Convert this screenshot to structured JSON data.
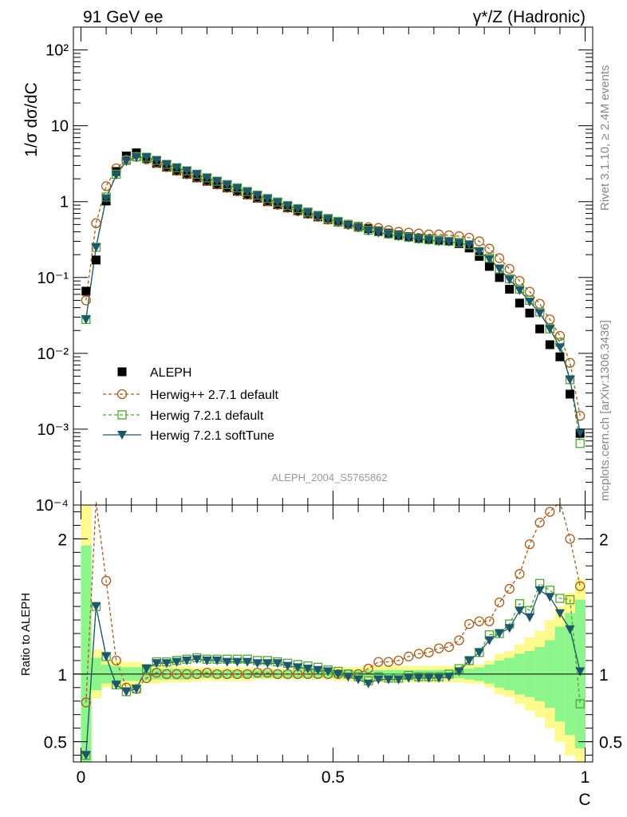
{
  "header": {
    "left_title": "91 GeV ee",
    "right_title": "γ*/Z (Hadronic)"
  },
  "side_text": {
    "rivet": "Rivet 3.1.10, ≥ 2.4M events",
    "mcplots": "mcplots.cern.ch [arXiv:1306.3436]"
  },
  "watermark": "ALEPH_2004_S5765862",
  "chart_data": [
    {
      "type": "line",
      "ylabel": "1/σ  dσ/dC",
      "yscale": "log",
      "ylim": [
        0.0001,
        200
      ],
      "xlim": [
        -0.015,
        1.015
      ],
      "y_ticks": [
        {
          "value": 100,
          "label": "10²"
        },
        {
          "value": 10,
          "label": "10"
        },
        {
          "value": 1,
          "label": "1"
        },
        {
          "value": 0.1,
          "label": "10⁻¹"
        },
        {
          "value": 0.01,
          "label": "10⁻²"
        },
        {
          "value": 0.001,
          "label": "10⁻³"
        },
        {
          "value": 0.0001,
          "label": "10⁻⁴"
        }
      ],
      "legend_position": "lower-left",
      "x": [
        0.01,
        0.03,
        0.05,
        0.07,
        0.09,
        0.11,
        0.13,
        0.15,
        0.17,
        0.19,
        0.21,
        0.23,
        0.25,
        0.27,
        0.29,
        0.31,
        0.33,
        0.35,
        0.37,
        0.39,
        0.41,
        0.43,
        0.45,
        0.47,
        0.49,
        0.51,
        0.53,
        0.55,
        0.57,
        0.59,
        0.61,
        0.63,
        0.65,
        0.67,
        0.69,
        0.71,
        0.73,
        0.75,
        0.77,
        0.79,
        0.81,
        0.83,
        0.85,
        0.87,
        0.89,
        0.91,
        0.93,
        0.95,
        0.97,
        0.99
      ],
      "series": [
        {
          "name": "ALEPH",
          "color": "#000000",
          "marker": "filled-square",
          "values": [
            0.066,
            0.17,
            1.02,
            2.5,
            4.0,
            4.4,
            3.7,
            3.2,
            2.85,
            2.55,
            2.3,
            2.06,
            1.86,
            1.68,
            1.52,
            1.37,
            1.23,
            1.11,
            1.0,
            0.91,
            0.83,
            0.76,
            0.69,
            0.63,
            0.58,
            0.54,
            0.5,
            0.47,
            0.44,
            0.41,
            0.385,
            0.365,
            0.345,
            0.33,
            0.32,
            0.31,
            0.3,
            0.28,
            0.245,
            0.19,
            0.14,
            0.1,
            0.07,
            0.046,
            0.034,
            0.021,
            0.013,
            0.009,
            0.0029,
            0.00088
          ]
        },
        {
          "name": "Herwig++ 2.7.1 default",
          "color": "#b05a14",
          "marker": "open-circle",
          "dashed": true,
          "values": [
            0.05,
            0.52,
            1.6,
            2.75,
            3.55,
            3.9,
            3.6,
            3.25,
            2.85,
            2.55,
            2.3,
            2.07,
            1.87,
            1.68,
            1.52,
            1.37,
            1.23,
            1.12,
            1.01,
            0.91,
            0.83,
            0.75,
            0.69,
            0.63,
            0.58,
            0.54,
            0.5,
            0.47,
            0.46,
            0.45,
            0.42,
            0.4,
            0.39,
            0.38,
            0.37,
            0.37,
            0.36,
            0.35,
            0.335,
            0.3,
            0.24,
            0.18,
            0.13,
            0.09,
            0.065,
            0.045,
            0.028,
            0.017,
            0.0075,
            0.0015
          ]
        },
        {
          "name": "Herwig 7.2.1 default",
          "color": "#4ca832",
          "marker": "open-square",
          "dashed": true,
          "values": [
            0.028,
            0.25,
            1.15,
            2.3,
            3.5,
            3.9,
            3.85,
            3.5,
            3.1,
            2.8,
            2.55,
            2.3,
            2.06,
            1.86,
            1.68,
            1.52,
            1.36,
            1.22,
            1.1,
            0.99,
            0.89,
            0.81,
            0.73,
            0.66,
            0.6,
            0.55,
            0.5,
            0.46,
            0.42,
            0.4,
            0.375,
            0.355,
            0.34,
            0.325,
            0.315,
            0.305,
            0.3,
            0.29,
            0.27,
            0.22,
            0.18,
            0.13,
            0.096,
            0.07,
            0.05,
            0.035,
            0.021,
            0.014,
            0.0045,
            0.00065
          ]
        },
        {
          "name": "Herwig 7.2.1 softTune",
          "color": "#1d5670",
          "marker": "filled-triangle-down",
          "dashed": false,
          "values": [
            0.028,
            0.25,
            1.1,
            2.25,
            3.4,
            3.85,
            3.85,
            3.5,
            3.1,
            2.8,
            2.55,
            2.3,
            2.06,
            1.86,
            1.67,
            1.5,
            1.35,
            1.21,
            1.09,
            0.98,
            0.88,
            0.8,
            0.72,
            0.65,
            0.59,
            0.54,
            0.49,
            0.45,
            0.41,
            0.39,
            0.37,
            0.35,
            0.335,
            0.32,
            0.31,
            0.3,
            0.295,
            0.285,
            0.27,
            0.22,
            0.175,
            0.13,
            0.094,
            0.068,
            0.048,
            0.034,
            0.021,
            0.012,
            0.0045,
            0.0009
          ]
        }
      ]
    },
    {
      "type": "line",
      "ylabel": "Ratio to ALEPH",
      "xlabel": "C",
      "ylim": [
        0.35,
        2.25
      ],
      "xlim": [
        -0.015,
        1.015
      ],
      "y_ticks": [
        {
          "value": 0.5,
          "label": "0.5"
        },
        {
          "value": 1,
          "label": "1"
        },
        {
          "value": 2,
          "label": "2"
        }
      ],
      "x_ticks": [
        {
          "value": 0,
          "label": "0"
        },
        {
          "value": 0.5,
          "label": "0.5"
        },
        {
          "value": 1,
          "label": "1"
        }
      ],
      "uncertainty_bands": {
        "bin_edges": [
          0.0,
          0.02,
          0.04,
          0.06,
          0.08,
          0.1,
          0.12,
          0.14,
          0.16,
          0.18,
          0.2,
          0.22,
          0.24,
          0.26,
          0.28,
          0.3,
          0.32,
          0.34,
          0.36,
          0.38,
          0.4,
          0.42,
          0.44,
          0.46,
          0.48,
          0.5,
          0.52,
          0.54,
          0.56,
          0.58,
          0.6,
          0.62,
          0.64,
          0.66,
          0.68,
          0.7,
          0.72,
          0.74,
          0.76,
          0.78,
          0.8,
          0.82,
          0.84,
          0.86,
          0.88,
          0.9,
          0.92,
          0.94,
          0.96,
          0.98,
          1.0
        ],
        "outer_color": "#fffa8c",
        "inner_color": "#8cf58c",
        "outer_half_width": [
          1.25,
          0.18,
          0.1,
          0.1,
          0.09,
          0.09,
          0.07,
          0.07,
          0.06,
          0.06,
          0.06,
          0.05,
          0.05,
          0.05,
          0.05,
          0.05,
          0.05,
          0.04,
          0.04,
          0.04,
          0.04,
          0.04,
          0.04,
          0.04,
          0.04,
          0.05,
          0.05,
          0.05,
          0.06,
          0.06,
          0.06,
          0.06,
          0.06,
          0.06,
          0.06,
          0.06,
          0.06,
          0.06,
          0.07,
          0.07,
          0.1,
          0.15,
          0.17,
          0.22,
          0.27,
          0.32,
          0.4,
          0.5,
          0.6,
          0.7
        ],
        "inner_half_width": [
          0.95,
          0.12,
          0.07,
          0.06,
          0.05,
          0.05,
          0.05,
          0.04,
          0.04,
          0.04,
          0.04,
          0.03,
          0.03,
          0.03,
          0.03,
          0.03,
          0.03,
          0.03,
          0.03,
          0.03,
          0.03,
          0.03,
          0.03,
          0.03,
          0.03,
          0.03,
          0.03,
          0.03,
          0.03,
          0.03,
          0.03,
          0.03,
          0.03,
          0.03,
          0.03,
          0.03,
          0.03,
          0.03,
          0.04,
          0.05,
          0.07,
          0.1,
          0.12,
          0.15,
          0.17,
          0.2,
          0.25,
          0.35,
          0.45,
          0.55
        ]
      },
      "series": [
        {
          "name": "Herwig++ 2.7.1 default",
          "color": "#b05a14",
          "values": [
            0.79,
            2.9,
            1.69,
            1.1,
            0.9,
            0.89,
            0.97,
            1.01,
            1.0,
            1.0,
            1.0,
            1.0,
            1.01,
            1.0,
            1.0,
            1.0,
            1.0,
            1.01,
            1.01,
            1.0,
            1.0,
            1.0,
            1.0,
            1.0,
            1.0,
            1.0,
            1.0,
            1.0,
            1.04,
            1.09,
            1.09,
            1.1,
            1.13,
            1.15,
            1.16,
            1.19,
            1.2,
            1.25,
            1.37,
            1.39,
            1.39,
            1.53,
            1.63,
            1.74,
            1.96,
            2.12,
            2.2,
            2.45,
            2.0,
            1.65
          ]
        },
        {
          "name": "Herwig 7.2.1 default",
          "color": "#4ca832",
          "values": [
            0.4,
            1.5,
            1.13,
            0.92,
            0.87,
            0.89,
            1.04,
            1.09,
            1.09,
            1.1,
            1.11,
            1.12,
            1.11,
            1.11,
            1.11,
            1.11,
            1.11,
            1.1,
            1.1,
            1.09,
            1.08,
            1.07,
            1.06,
            1.05,
            1.03,
            1.02,
            1.0,
            0.98,
            0.95,
            0.98,
            0.97,
            0.97,
            0.99,
            0.98,
            0.98,
            0.98,
            1.0,
            1.04,
            1.1,
            1.16,
            1.29,
            1.3,
            1.37,
            1.52,
            1.47,
            1.67,
            1.62,
            1.56,
            1.55,
            0.78
          ]
        },
        {
          "name": "Herwig 7.2.1 softTune",
          "color": "#1d5670",
          "values": [
            0.4,
            1.5,
            1.13,
            0.92,
            0.87,
            0.89,
            1.04,
            1.08,
            1.08,
            1.09,
            1.1,
            1.11,
            1.1,
            1.1,
            1.09,
            1.09,
            1.09,
            1.08,
            1.08,
            1.08,
            1.06,
            1.05,
            1.04,
            1.03,
            1.02,
            1.0,
            0.98,
            0.96,
            0.93,
            0.96,
            0.96,
            0.96,
            0.97,
            0.97,
            0.97,
            0.97,
            0.98,
            1.02,
            1.1,
            1.16,
            1.25,
            1.3,
            1.34,
            1.47,
            1.42,
            1.62,
            1.57,
            1.45,
            1.33,
            1.02
          ]
        }
      ]
    }
  ]
}
